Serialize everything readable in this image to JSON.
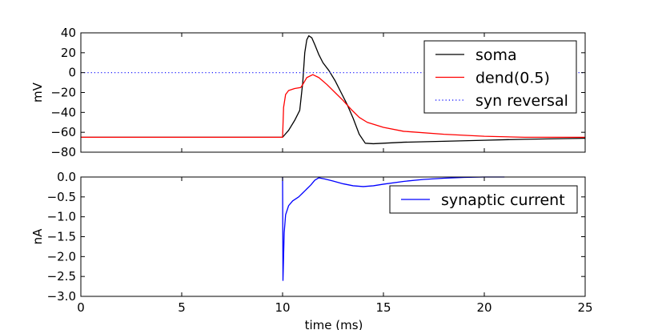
{
  "chart_data": [
    {
      "type": "line",
      "xlim": [
        0,
        25
      ],
      "ylim": [
        -80,
        40
      ],
      "xlabel": "",
      "ylabel": "mV",
      "xticks": [],
      "yticks": [
        40,
        20,
        0,
        -20,
        -40,
        -60,
        -80
      ],
      "ytick_labels": [
        "40",
        "20",
        "0",
        "−20",
        "−40",
        "−60",
        "−80"
      ],
      "legend_position": "top-right",
      "series": [
        {
          "name": "soma",
          "color": "#000000",
          "style": "solid",
          "x": [
            0,
            10.0,
            10.3,
            10.6,
            10.85,
            11.0,
            11.1,
            11.2,
            11.3,
            11.45,
            11.6,
            11.8,
            12.0,
            12.3,
            12.6,
            12.9,
            13.2,
            13.5,
            13.8,
            14.1,
            14.5,
            15.0,
            16.0,
            18.0,
            20.0,
            22.0,
            25.0
          ],
          "y": [
            -65,
            -65,
            -58,
            -48,
            -38,
            -10,
            20,
            33,
            37,
            35,
            28,
            18,
            10,
            2,
            -8,
            -20,
            -32,
            -46,
            -62,
            -71,
            -71.5,
            -71,
            -70,
            -69,
            -68,
            -67,
            -66
          ]
        },
        {
          "name": "dend(0.5)",
          "color": "#ff0000",
          "style": "solid",
          "x": [
            0,
            10.0,
            10.05,
            10.15,
            10.3,
            10.6,
            10.9,
            11.0,
            11.2,
            11.5,
            11.8,
            12.2,
            12.6,
            13.0,
            13.4,
            13.8,
            14.2,
            15.0,
            16.0,
            18.0,
            20.0,
            22.0,
            25.0
          ],
          "y": [
            -65,
            -65,
            -35,
            -22,
            -18,
            -16,
            -15,
            -12,
            -5,
            -2,
            -5,
            -12,
            -20,
            -28,
            -37,
            -45,
            -50,
            -55,
            -59,
            -62,
            -64,
            -65,
            -65
          ]
        },
        {
          "name": "syn reversal",
          "color": "#0000ff",
          "style": "dotted",
          "x": [
            0,
            25
          ],
          "y": [
            0,
            0
          ]
        }
      ]
    },
    {
      "type": "line",
      "xlim": [
        0,
        25
      ],
      "ylim": [
        -3.0,
        0.0
      ],
      "xlabel": "time (ms)",
      "ylabel": "nA",
      "xticks": [
        0,
        5,
        10,
        15,
        20,
        25
      ],
      "xtick_labels": [
        "0",
        "5",
        "10",
        "15",
        "20",
        "25"
      ],
      "yticks": [
        0.0,
        -0.5,
        -1.0,
        -1.5,
        -2.0,
        -2.5,
        -3.0
      ],
      "ytick_labels": [
        "0.0",
        "−0.5",
        "−1.0",
        "−1.5",
        "−2.0",
        "−2.5",
        "−3.0"
      ],
      "legend_position": "top-right",
      "series": [
        {
          "name": "synaptic current",
          "color": "#0000ff",
          "style": "solid",
          "x": [
            10.0,
            10.02,
            10.05,
            10.08,
            10.15,
            10.3,
            10.5,
            10.8,
            11.0,
            11.2,
            11.4,
            11.6,
            11.8,
            12.1,
            12.5,
            13.0,
            13.5,
            14.0,
            14.5,
            15.0,
            16.0,
            17.0,
            18.0,
            19.0,
            20.0,
            21.0
          ],
          "y": [
            0.0,
            -2.6,
            -2.0,
            -1.4,
            -0.95,
            -0.72,
            -0.6,
            -0.5,
            -0.4,
            -0.3,
            -0.2,
            -0.08,
            -0.02,
            -0.05,
            -0.1,
            -0.17,
            -0.22,
            -0.24,
            -0.22,
            -0.18,
            -0.11,
            -0.06,
            -0.03,
            -0.01,
            0.0,
            0.0
          ]
        }
      ]
    }
  ]
}
